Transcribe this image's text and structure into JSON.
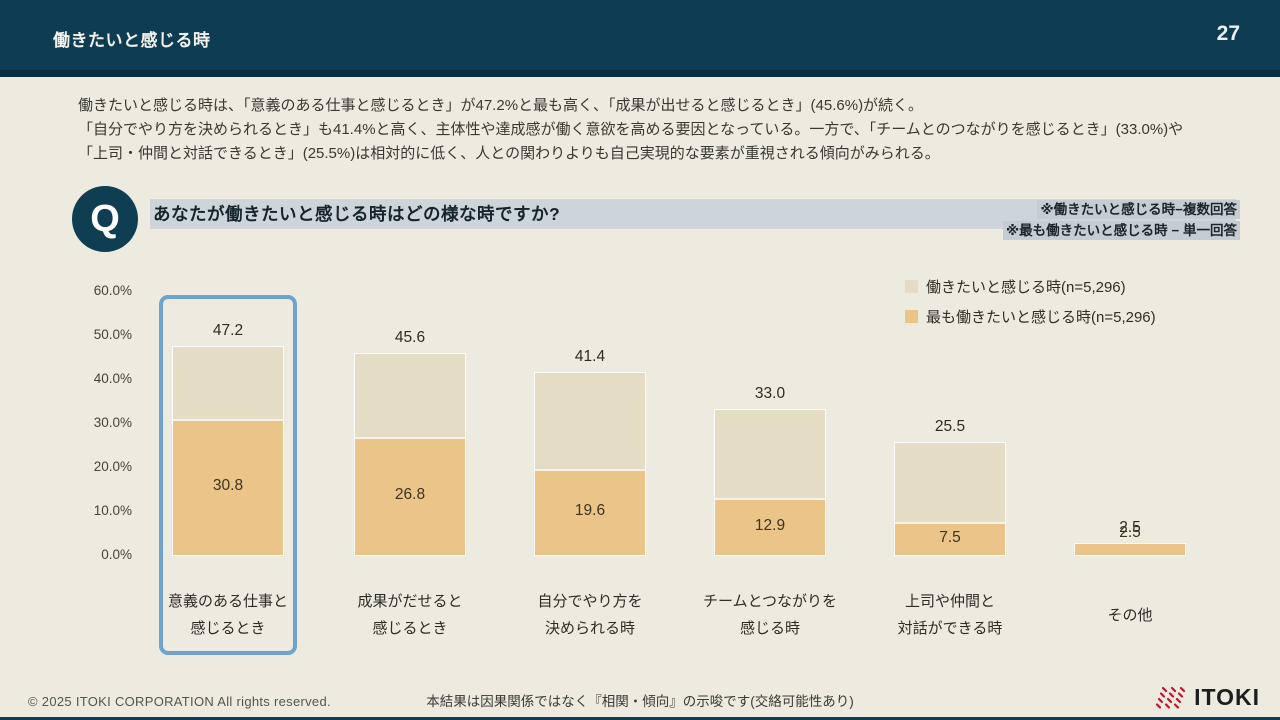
{
  "header": {
    "title": "働きたいと感じる時",
    "page_number": "27"
  },
  "summary": {
    "lines": [
      "働きたいと感じる時は、「意義のある仕事と感じるとき」が47.2%と最も高く、「成果が出せると感じるとき」(45.6%)が続く。",
      "「自分でやり方を決められるとき」も41.4%と高く、主体性や達成感が働く意欲を高める要因となっている。一方で、「チームとのつながりを感じるとき」(33.0%)や",
      "「上司・仲間と対話できるとき」(25.5%)は相対的に低く、人との関わりよりも自己実現的な要素が重視される傾向がみられる。"
    ]
  },
  "question": {
    "mark": "Q",
    "text": "あなたが働きたいと感じる時はどの様な時ですか?",
    "notes": [
      "※働きたいと感じる時−複数回答",
      "※最も働きたいと感じる時 − 単一回答"
    ]
  },
  "chart_data": {
    "type": "bar",
    "subtype": "overlaid-stacked-columns",
    "title": "あなたが働きたいと感じる時はどの様な時ですか?",
    "categories": [
      [
        "意義のある仕事と",
        "感じるとき"
      ],
      [
        "成果がだせると",
        "感じるとき"
      ],
      [
        "自分でやり方を",
        "決められる時"
      ],
      [
        "チームとつながりを",
        "感じる時"
      ],
      [
        "上司や仲間と",
        "対話ができる時"
      ],
      [
        "その他"
      ]
    ],
    "series": [
      {
        "name": "働きたいと感じる時(n=5,296)",
        "values": [
          47.2,
          45.6,
          41.4,
          33.0,
          25.5,
          2.5
        ],
        "color": "#e5dcc5"
      },
      {
        "name": "最も働きたいと感じる時(n=5,296)",
        "values": [
          30.8,
          26.8,
          19.6,
          12.9,
          7.5,
          2.5
        ],
        "color": "#eac488"
      }
    ],
    "xlabel": "",
    "ylabel": "",
    "ylim": [
      0,
      60
    ],
    "yticks": [
      "60.0%",
      "50.0%",
      "40.0%",
      "30.0%",
      "20.0%",
      "10.0%",
      "0.0%"
    ],
    "grid": false,
    "legend_position": "top-right",
    "highlight_index": 0,
    "highlight_color": "#6fa3cd"
  },
  "footer": {
    "copyright": "© 2025 ITOKI CORPORATION  All rights reserved.",
    "note": "本結果は因果関係ではなく『相関・傾向』の示唆です(交絡可能性あり)",
    "logo_text": "ITOKI"
  },
  "colors": {
    "header_bg": "#0e3c52",
    "page_bg": "#edeae0",
    "question_band": "#ced5da",
    "note_highlight": "#c5cdd4",
    "series_multi": "#e5dcc5",
    "series_single": "#eac488",
    "highlight_border": "#6fa3cd",
    "logo_red": "#c41230"
  }
}
